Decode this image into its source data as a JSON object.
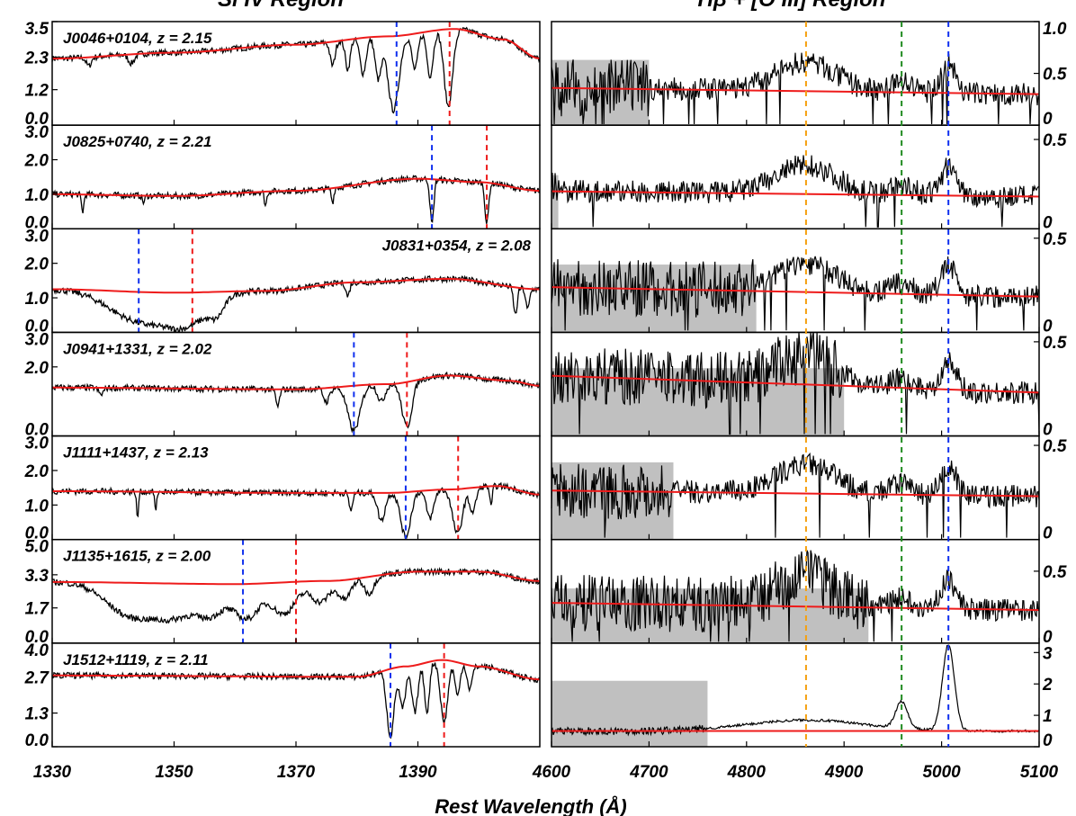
{
  "chart_data": {
    "type": "line",
    "column_titles": {
      "left": "Si IV Region",
      "right": "Hβ + [O III] Region"
    },
    "xlabel": "Rest Wavelength (Å)",
    "left": {
      "xlim": [
        1330,
        1410
      ],
      "xticks": [
        1330,
        1350,
        1370,
        1390
      ],
      "panels": [
        {
          "label": "J0046+0104, z = 2.15",
          "label_pos": "left",
          "ylim": [
            0,
            3.5
          ],
          "yticks": [
            "3.5",
            "2.3",
            "1.2",
            "0.0"
          ],
          "continuum": [
            [
              1330,
              2.25
            ],
            [
              1350,
              2.45
            ],
            [
              1370,
              2.72
            ],
            [
              1385,
              3.0
            ],
            [
              1396,
              3.25
            ],
            [
              1404,
              2.9
            ],
            [
              1410,
              2.25
            ]
          ],
          "lines": [
            {
              "x": 1386.5,
              "color": "blue"
            },
            {
              "x": 1395.2,
              "color": "red"
            }
          ]
        },
        {
          "label": "J0825+0740, z = 2.21",
          "label_pos": "left",
          "ylim": [
            0,
            3.0
          ],
          "yticks": [
            "3.0",
            "2.0",
            "1.0",
            "0.0"
          ],
          "continuum": [
            [
              1330,
              1.0
            ],
            [
              1350,
              0.95
            ],
            [
              1370,
              1.1
            ],
            [
              1390,
              1.45
            ],
            [
              1400,
              1.35
            ],
            [
              1410,
              1.1
            ]
          ],
          "lines": [
            {
              "x": 1392.3,
              "color": "blue"
            },
            {
              "x": 1401.3,
              "color": "red"
            }
          ]
        },
        {
          "label": "J0831+0354, z = 2.08",
          "label_pos": "right",
          "ylim": [
            0,
            3.0
          ],
          "yticks": [
            "3.0",
            "2.0",
            "1.0",
            "0.0"
          ],
          "continuum": [
            [
              1330,
              1.25
            ],
            [
              1350,
              1.15
            ],
            [
              1365,
              1.2
            ],
            [
              1380,
              1.45
            ],
            [
              1395,
              1.55
            ],
            [
              1410,
              1.25
            ]
          ],
          "lines": [
            {
              "x": 1344.2,
              "color": "blue"
            },
            {
              "x": 1353.0,
              "color": "red"
            }
          ]
        },
        {
          "label": "J0941+1331, z = 2.02",
          "label_pos": "left",
          "ylim": [
            0,
            3.0
          ],
          "yticks": [
            "3.0",
            "2.0",
            "0.0"
          ],
          "continuum": [
            [
              1330,
              1.4
            ],
            [
              1370,
              1.35
            ],
            [
              1385,
              1.5
            ],
            [
              1395,
              1.75
            ],
            [
              1405,
              1.6
            ],
            [
              1410,
              1.45
            ]
          ],
          "lines": [
            {
              "x": 1379.5,
              "color": "blue"
            },
            {
              "x": 1388.2,
              "color": "red"
            }
          ]
        },
        {
          "label": "J1111+1437, z = 2.13",
          "label_pos": "left",
          "ylim": [
            0,
            3.0
          ],
          "yticks": [
            "3.0",
            "2.0",
            "1.0",
            "0.0"
          ],
          "continuum": [
            [
              1330,
              1.4
            ],
            [
              1370,
              1.35
            ],
            [
              1385,
              1.35
            ],
            [
              1395,
              1.45
            ],
            [
              1403,
              1.55
            ],
            [
              1410,
              1.3
            ]
          ],
          "lines": [
            {
              "x": 1388.0,
              "color": "blue"
            },
            {
              "x": 1396.6,
              "color": "red"
            }
          ]
        },
        {
          "label": "J1135+1615, z = 2.00",
          "label_pos": "left",
          "ylim": [
            0,
            5.0
          ],
          "yticks": [
            "5.0",
            "3.3",
            "1.7",
            "0.0"
          ],
          "continuum": [
            [
              1330,
              2.95
            ],
            [
              1360,
              2.85
            ],
            [
              1375,
              3.0
            ],
            [
              1390,
              3.45
            ],
            [
              1400,
              3.45
            ],
            [
              1410,
              3.0
            ]
          ],
          "lines": [
            {
              "x": 1361.3,
              "color": "blue"
            },
            {
              "x": 1370.0,
              "color": "red"
            }
          ]
        },
        {
          "label": "J1512+1119, z = 2.11",
          "label_pos": "left",
          "ylim": [
            0,
            4.0
          ],
          "yticks": [
            "4.0",
            "2.7",
            "1.3",
            "0.0"
          ],
          "continuum": [
            [
              1330,
              2.75
            ],
            [
              1380,
              2.7
            ],
            [
              1388,
              3.1
            ],
            [
              1394,
              3.35
            ],
            [
              1400,
              3.1
            ],
            [
              1410,
              2.6
            ]
          ],
          "lines": [
            {
              "x": 1385.5,
              "color": "blue"
            },
            {
              "x": 1394.3,
              "color": "red"
            }
          ]
        }
      ]
    },
    "right": {
      "xlim": [
        4600,
        5100
      ],
      "xticks": [
        4600,
        4700,
        4800,
        4900,
        5000,
        5100
      ],
      "vlines": [
        {
          "x": 4861,
          "color": "orange"
        },
        {
          "x": 4959,
          "color": "green"
        },
        {
          "x": 5007,
          "color": "blue"
        }
      ],
      "panels": [
        {
          "ylim": [
            0,
            1.0
          ],
          "yticks": [
            "1.0",
            "0.5",
            "0"
          ],
          "shade_to": 4700,
          "shade_height": 0.63,
          "continuum": [
            [
              4600,
              0.36
            ],
            [
              5100,
              0.3
            ]
          ]
        },
        {
          "ylim": [
            0,
            0.58
          ],
          "yticks": [
            "0.5",
            "0"
          ],
          "shade_to": 4607,
          "shade_height": 0.3,
          "continuum": [
            [
              4600,
              0.21
            ],
            [
              5100,
              0.18
            ]
          ]
        },
        {
          "ylim": [
            0,
            0.55
          ],
          "yticks": [
            "0.5",
            "0"
          ],
          "shade_to": 4810,
          "shade_height": 0.36,
          "continuum": [
            [
              4600,
              0.24
            ],
            [
              5100,
              0.19
            ]
          ]
        },
        {
          "ylim": [
            0,
            0.55
          ],
          "yticks": [
            "0.5",
            "0"
          ],
          "shade_to": 4900,
          "shade_height": 0.36,
          "continuum": [
            [
              4600,
              0.32
            ],
            [
              5100,
              0.23
            ]
          ]
        },
        {
          "ylim": [
            0,
            0.55
          ],
          "yticks": [
            "0.5",
            "0"
          ],
          "shade_to": 4725,
          "shade_height": 0.41,
          "continuum": [
            [
              4600,
              0.26
            ],
            [
              5100,
              0.23
            ]
          ]
        },
        {
          "ylim": [
            0,
            0.72
          ],
          "yticks": [
            "0.5",
            "0"
          ],
          "shade_to": 4925,
          "shade_height": 0.38,
          "continuum": [
            [
              4600,
              0.28
            ],
            [
              5100,
              0.23
            ]
          ]
        },
        {
          "ylim": [
            0,
            3.3
          ],
          "yticks": [
            "3",
            "2",
            "1",
            "0"
          ],
          "shade_to": 4760,
          "shade_height": 2.1,
          "continuum": [
            [
              4600,
              0.5
            ],
            [
              5100,
              0.5
            ]
          ]
        }
      ]
    }
  }
}
